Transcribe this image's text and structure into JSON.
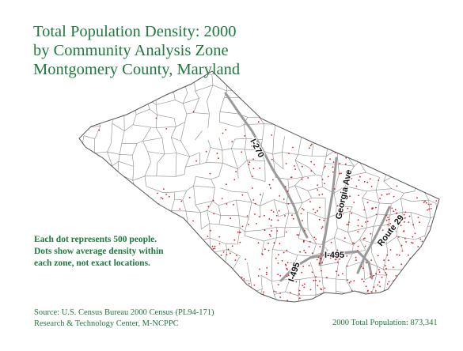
{
  "title": {
    "line1": "Total Population Density: 2000",
    "line2": "by Community Analysis Zone",
    "line3": "Montgomery County, Maryland"
  },
  "note": {
    "line1": "Each dot represents 500 people.",
    "line2": "Dots show average density within",
    "line3": "each zone, not exact locations."
  },
  "source": {
    "line1": "Source: U.S. Census Bureau 2000 Census (PL94-171)",
    "line2": "Research & Technology Center, M-NCPPC"
  },
  "total_population": "2000 Total Population: 873,341",
  "roads": {
    "i270": "I-270",
    "georgia": "Georgia Ave",
    "route29": "Route 29",
    "i495_west": "I-495",
    "i495_east": "I-495"
  },
  "colors": {
    "title": "#1e7a3c",
    "dots": "#e0191f",
    "zone_lines": "#8a8a8a",
    "roads": "#9a9a9a"
  },
  "legend": {
    "dot_value_people": 500
  }
}
